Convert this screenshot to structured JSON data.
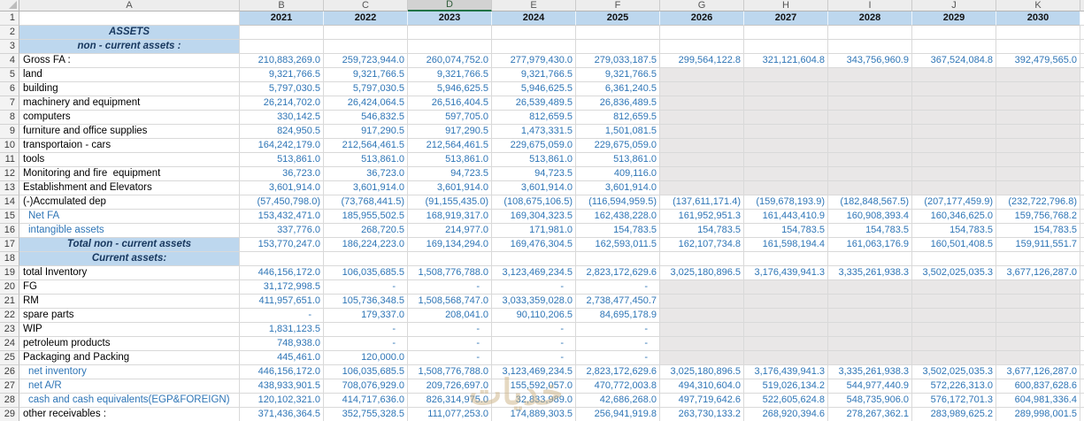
{
  "colors": {
    "number_text": "#2E75B6",
    "blue_label_text": "#2E75B6",
    "header_fill": "#BDD7EE",
    "heading_text": "#17375E",
    "empty_area_fill": "#E9E7E7",
    "selected_column_underline": "#217346"
  },
  "watermark": {
    "text": "خديات"
  },
  "sheet": {
    "col_letters": [
      "A",
      "B",
      "C",
      "D",
      "E",
      "F",
      "G",
      "H",
      "I",
      "J",
      "K"
    ],
    "selected_col": "D",
    "year_row": {
      "n": 1
    },
    "years": [
      "2021",
      "2022",
      "2023",
      "2024",
      "2025",
      "2026",
      "2027",
      "2028",
      "2029",
      "2030"
    ],
    "rows": [
      {
        "n": 2,
        "label": "ASSETS",
        "type": "heading",
        "values": [
          "",
          "",
          "",
          "",
          "",
          "",
          "",
          "",
          "",
          ""
        ]
      },
      {
        "n": 3,
        "label": "non - current assets :",
        "type": "heading",
        "values": [
          "",
          "",
          "",
          "",
          "",
          "",
          "",
          "",
          "",
          ""
        ]
      },
      {
        "n": 4,
        "label": "Gross FA :",
        "type": "black",
        "values": [
          "210,883,269.0",
          "259,723,944.0",
          "260,074,752.0",
          "277,979,430.0",
          "279,033,187.5",
          "299,564,122.8",
          "321,121,604.8",
          "343,756,960.9",
          "367,524,084.8",
          "392,479,565.0"
        ]
      },
      {
        "n": 5,
        "label": "land",
        "type": "black",
        "values": [
          "9,321,766.5",
          "9,321,766.5",
          "9,321,766.5",
          "9,321,766.5",
          "9,321,766.5",
          null,
          null,
          null,
          null,
          null
        ]
      },
      {
        "n": 6,
        "label": "building",
        "type": "black",
        "values": [
          "5,797,030.5",
          "5,797,030.5",
          "5,946,625.5",
          "5,946,625.5",
          "6,361,240.5",
          null,
          null,
          null,
          null,
          null
        ]
      },
      {
        "n": 7,
        "label": "machinery and equipment",
        "type": "black",
        "values": [
          "26,214,702.0",
          "26,424,064.5",
          "26,516,404.5",
          "26,539,489.5",
          "26,836,489.5",
          null,
          null,
          null,
          null,
          null
        ]
      },
      {
        "n": 8,
        "label": "computers",
        "type": "black",
        "values": [
          "330,142.5",
          "546,832.5",
          "597,705.0",
          "812,659.5",
          "812,659.5",
          null,
          null,
          null,
          null,
          null
        ]
      },
      {
        "n": 9,
        "label": "furniture and office supplies",
        "type": "black",
        "values": [
          "824,950.5",
          "917,290.5",
          "917,290.5",
          "1,473,331.5",
          "1,501,081.5",
          null,
          null,
          null,
          null,
          null
        ]
      },
      {
        "n": 10,
        "label": "transportaion - cars",
        "type": "black",
        "values": [
          "164,242,179.0",
          "212,564,461.5",
          "212,564,461.5",
          "229,675,059.0",
          "229,675,059.0",
          null,
          null,
          null,
          null,
          null
        ]
      },
      {
        "n": 11,
        "label": "tools",
        "type": "black",
        "values": [
          "513,861.0",
          "513,861.0",
          "513,861.0",
          "513,861.0",
          "513,861.0",
          null,
          null,
          null,
          null,
          null
        ]
      },
      {
        "n": 12,
        "label": "Monitoring and fire  equipment",
        "type": "black",
        "values": [
          "36,723.0",
          "36,723.0",
          "94,723.5",
          "94,723.5",
          "409,116.0",
          null,
          null,
          null,
          null,
          null
        ]
      },
      {
        "n": 13,
        "label": "Establishment and Elevators",
        "type": "black",
        "values": [
          "3,601,914.0",
          "3,601,914.0",
          "3,601,914.0",
          "3,601,914.0",
          "3,601,914.0",
          null,
          null,
          null,
          null,
          null
        ]
      },
      {
        "n": 14,
        "label": "(-)Accmulated dep",
        "type": "black",
        "values": [
          "(57,450,798.0)",
          "(73,768,441.5)",
          "(91,155,435.0)",
          "(108,675,106.5)",
          "(116,594,959.5)",
          "(137,611,171.4)",
          "(159,678,193.9)",
          "(182,848,567.5)",
          "(207,177,459.9)",
          "(232,722,796.8)"
        ]
      },
      {
        "n": 15,
        "label": "Net FA",
        "type": "blue",
        "indent": true,
        "values": [
          "153,432,471.0",
          "185,955,502.5",
          "168,919,317.0",
          "169,304,323.5",
          "162,438,228.0",
          "161,952,951.3",
          "161,443,410.9",
          "160,908,393.4",
          "160,346,625.0",
          "159,756,768.2"
        ]
      },
      {
        "n": 16,
        "label": "intangible assets",
        "type": "blue",
        "indent": true,
        "values": [
          "337,776.0",
          "268,720.5",
          "214,977.0",
          "171,981.0",
          "154,783.5",
          "154,783.5",
          "154,783.5",
          "154,783.5",
          "154,783.5",
          "154,783.5"
        ]
      },
      {
        "n": 17,
        "label": "Total non - current assets",
        "type": "heading",
        "values": [
          "153,770,247.0",
          "186,224,223.0",
          "169,134,294.0",
          "169,476,304.5",
          "162,593,011.5",
          "162,107,734.8",
          "161,598,194.4",
          "161,063,176.9",
          "160,501,408.5",
          "159,911,551.7"
        ]
      },
      {
        "n": 18,
        "label": "Current assets:",
        "type": "heading",
        "values": [
          "",
          "",
          "",
          "",
          "",
          "",
          "",
          "",
          "",
          ""
        ]
      },
      {
        "n": 19,
        "label": "total Inventory",
        "type": "black",
        "values": [
          "446,156,172.0",
          "106,035,685.5",
          "1,508,776,788.0",
          "3,123,469,234.5",
          "2,823,172,629.6",
          "3,025,180,896.5",
          "3,176,439,941.3",
          "3,335,261,938.3",
          "3,502,025,035.3",
          "3,677,126,287.0"
        ]
      },
      {
        "n": 20,
        "label": "FG",
        "type": "black",
        "values": [
          "31,172,998.5",
          "-",
          "-",
          "-",
          "-",
          null,
          null,
          null,
          null,
          null
        ]
      },
      {
        "n": 21,
        "label": "RM",
        "type": "black",
        "values": [
          "411,957,651.0",
          "105,736,348.5",
          "1,508,568,747.0",
          "3,033,359,028.0",
          "2,738,477,450.7",
          null,
          null,
          null,
          null,
          null
        ]
      },
      {
        "n": 22,
        "label": "spare parts",
        "type": "black",
        "values": [
          "-",
          "179,337.0",
          "208,041.0",
          "90,110,206.5",
          "84,695,178.9",
          null,
          null,
          null,
          null,
          null
        ]
      },
      {
        "n": 23,
        "label": "WIP",
        "type": "black",
        "values": [
          "1,831,123.5",
          "-",
          "-",
          "-",
          "-",
          null,
          null,
          null,
          null,
          null
        ]
      },
      {
        "n": 24,
        "label": "petroleum products",
        "type": "black",
        "values": [
          "748,938.0",
          "-",
          "-",
          "-",
          "-",
          null,
          null,
          null,
          null,
          null
        ]
      },
      {
        "n": 25,
        "label": "Packaging and Packing",
        "type": "black",
        "values": [
          "445,461.0",
          "120,000.0",
          "-",
          "-",
          "-",
          null,
          null,
          null,
          null,
          null
        ]
      },
      {
        "n": 26,
        "label": "net inventory",
        "type": "blue",
        "indent": true,
        "values": [
          "446,156,172.0",
          "106,035,685.5",
          "1,508,776,788.0",
          "3,123,469,234.5",
          "2,823,172,629.6",
          "3,025,180,896.5",
          "3,176,439,941.3",
          "3,335,261,938.3",
          "3,502,025,035.3",
          "3,677,126,287.0"
        ]
      },
      {
        "n": 27,
        "label": "net A/R",
        "type": "blue",
        "indent": true,
        "values": [
          "438,933,901.5",
          "708,076,929.0",
          "209,726,697.0",
          "155,592,057.0",
          "470,772,003.8",
          "494,310,604.0",
          "519,026,134.2",
          "544,977,440.9",
          "572,226,313.0",
          "600,837,628.6"
        ]
      },
      {
        "n": 28,
        "label": "cash and cash equivalents(EGP&FOREIGN)",
        "type": "blue",
        "indent": true,
        "values": [
          "120,102,321.0",
          "414,717,636.0",
          "826,314,975.0",
          "32,833,989.0",
          "42,686,268.0",
          "497,719,642.6",
          "522,605,624.8",
          "548,735,906.0",
          "576,172,701.3",
          "604,981,336.4"
        ]
      },
      {
        "n": 29,
        "label": "other receivables :",
        "type": "black",
        "values": [
          "371,436,364.5",
          "352,755,328.5",
          "111,077,253.0",
          "174,889,303.5",
          "256,941,919.8",
          "263,730,133.2",
          "268,920,394.6",
          "278,267,362.1",
          "283,989,625.2",
          "289,998,001.5"
        ]
      }
    ]
  }
}
